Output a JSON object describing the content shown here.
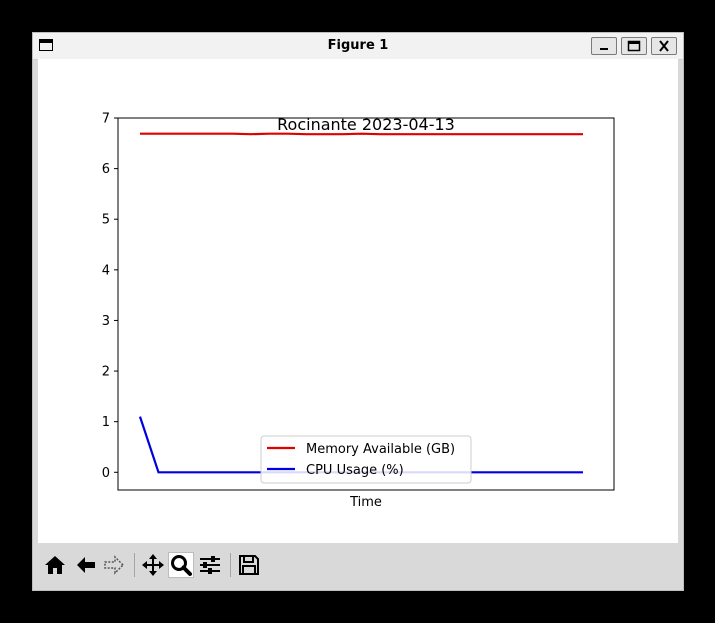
{
  "window": {
    "title": "Figure 1"
  },
  "toolbar": {
    "tools": [
      "home-icon",
      "back-arrow-icon",
      "forward-arrow-icon",
      "pan-icon",
      "zoom-icon",
      "configure-subplots-icon",
      "save-icon"
    ],
    "active_tool": "zoom-icon"
  },
  "chart_data": {
    "type": "line",
    "title": "Rocinante 2023-04-13",
    "xlabel": "Time",
    "ylabel": "",
    "ylim": [
      -0.35,
      7
    ],
    "yticks": [
      "0",
      "1",
      "2",
      "3",
      "4",
      "5",
      "6",
      "7"
    ],
    "x_ticks_shown": false,
    "legend": {
      "placement": "lower-center",
      "entries": [
        "Memory Available (GB)",
        "CPU Usage (%)"
      ]
    },
    "series": [
      {
        "name": "Memory Available (GB)",
        "color": "#e00000",
        "x": [
          0,
          1,
          2,
          3,
          4,
          5,
          6,
          7,
          8,
          9,
          10,
          11,
          12,
          13,
          14,
          15,
          16,
          17,
          18,
          19,
          20,
          21,
          22,
          23,
          24
        ],
        "values": [
          6.69,
          6.69,
          6.69,
          6.69,
          6.69,
          6.69,
          6.68,
          6.69,
          6.69,
          6.68,
          6.68,
          6.68,
          6.69,
          6.68,
          6.68,
          6.68,
          6.68,
          6.68,
          6.68,
          6.68,
          6.68,
          6.68,
          6.68,
          6.68,
          6.68
        ]
      },
      {
        "name": "CPU Usage (%)",
        "color": "#0000e0",
        "x": [
          0,
          1,
          2,
          3,
          4,
          5,
          6,
          7,
          8,
          9,
          10,
          11,
          12,
          13,
          14,
          15,
          16,
          17,
          18,
          19,
          20,
          21,
          22,
          23,
          24
        ],
        "values": [
          1.1,
          0,
          0,
          0,
          0,
          0,
          0,
          0,
          0,
          0,
          0,
          0,
          0,
          0,
          0,
          0,
          0,
          0,
          0,
          0,
          0,
          0,
          0,
          0,
          0
        ]
      }
    ]
  }
}
